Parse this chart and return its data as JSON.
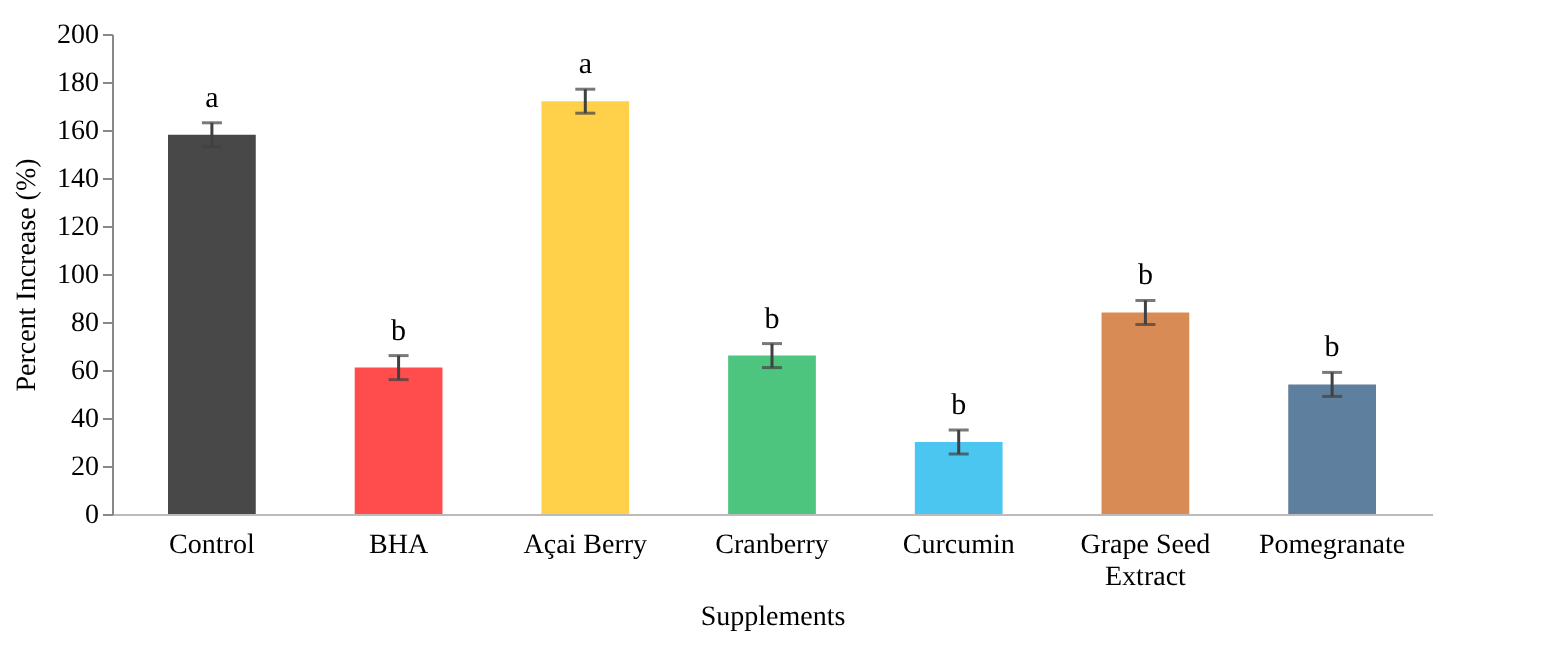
{
  "chart_data": {
    "type": "bar",
    "xlabel": "Supplements",
    "ylabel": "Percent Increase (%)",
    "categories": [
      "Control",
      "BHA",
      "Açai Berry",
      "Cranberry",
      "Curcumin",
      "Grape Seed Extract",
      "Pomegranate"
    ],
    "values": [
      158,
      61,
      172,
      66,
      30,
      84,
      54
    ],
    "errors": [
      5,
      5,
      5,
      5,
      5,
      5,
      5
    ],
    "colors": [
      "#484848",
      "#ff4c4c",
      "#ffd04a",
      "#4ec57f",
      "#4ac6f0",
      "#d98b56",
      "#5f7f9f"
    ],
    "ylim": [
      0,
      200
    ],
    "yticks": [
      0,
      20,
      40,
      60,
      80,
      100,
      120,
      140,
      160,
      180,
      200
    ],
    "grid": false,
    "annotations": [
      "a",
      "b",
      "a",
      "b",
      "b",
      "b",
      "b"
    ]
  }
}
